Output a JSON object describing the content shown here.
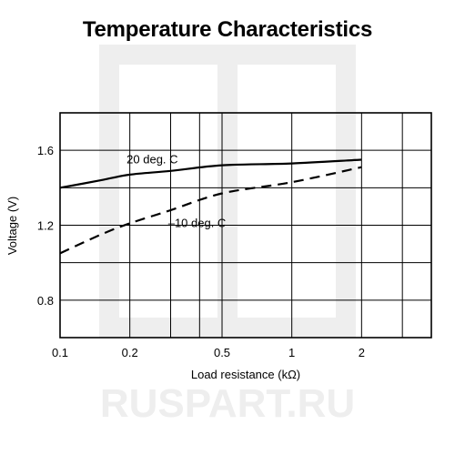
{
  "watermark": {
    "text": "RUSPART.RU",
    "color": "#eeeeee"
  },
  "chart_data": {
    "type": "line",
    "title": "Temperature Characteristics",
    "xlabel": "Load resistance (kΩ)",
    "ylabel": "Voltage (V)",
    "xscale": "log",
    "xlim": [
      0.1,
      4
    ],
    "ylim": [
      0.6,
      1.8
    ],
    "xticks": [
      0.1,
      0.2,
      0.5,
      1,
      2
    ],
    "xtick_labels": [
      "0.1",
      "0.2",
      "0.5",
      "1",
      "2"
    ],
    "yticks": [
      0.8,
      1.2,
      1.6
    ],
    "ytick_labels": [
      "0.8",
      "1.2",
      "1.6"
    ],
    "x_gridlines": [
      0.1,
      0.2,
      0.3,
      0.4,
      0.5,
      1,
      2,
      3,
      4
    ],
    "y_gridlines": [
      0.6,
      0.8,
      1.0,
      1.2,
      1.4,
      1.6,
      1.8
    ],
    "grid": true,
    "legend": "none",
    "series": [
      {
        "name": "20 deg. C",
        "style": "solid",
        "color": "#000000",
        "x": [
          0.1,
          0.15,
          0.2,
          0.3,
          0.5,
          1,
          2
        ],
        "y": [
          1.4,
          1.44,
          1.47,
          1.49,
          1.52,
          1.53,
          1.55
        ]
      },
      {
        "name": "–10 deg. C",
        "style": "dashed",
        "color": "#000000",
        "x": [
          0.1,
          0.15,
          0.2,
          0.3,
          0.5,
          1,
          2
        ],
        "y": [
          1.05,
          1.15,
          1.21,
          1.28,
          1.37,
          1.43,
          1.51
        ]
      }
    ],
    "annotations": [
      {
        "text": "20 deg. C",
        "series": 0,
        "x": 0.25,
        "y": 1.53
      },
      {
        "text": "–10 deg. C",
        "series": 1,
        "x": 0.39,
        "y": 1.19
      }
    ]
  }
}
